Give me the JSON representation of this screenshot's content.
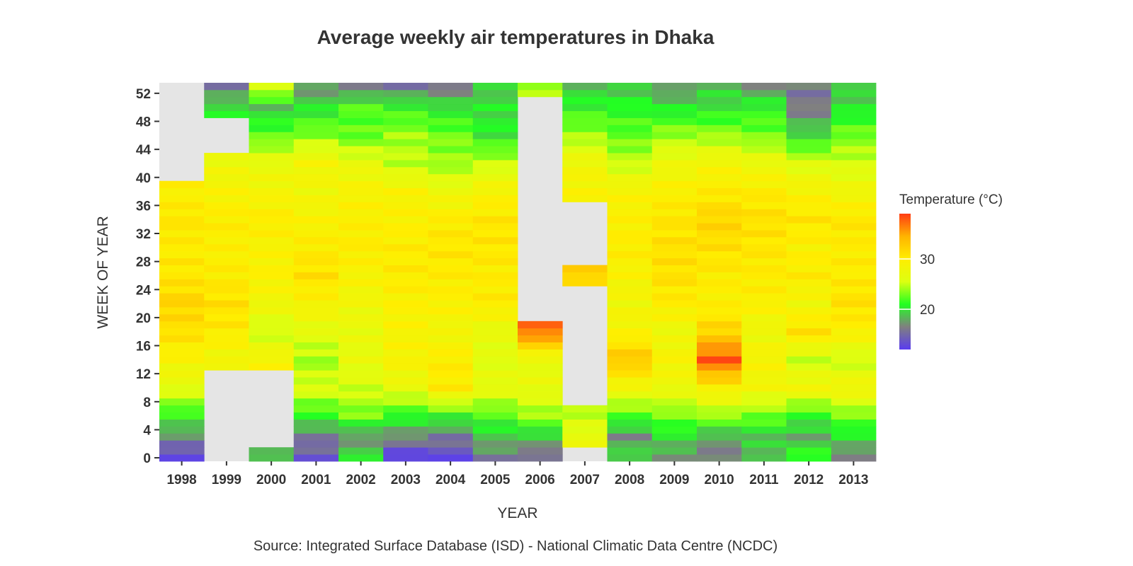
{
  "chart_data": {
    "type": "heatmap",
    "title": "Average weekly air temperatures in Dhaka",
    "xlabel": "YEAR",
    "ylabel": "WEEK OF YEAR",
    "caption": "Source: Integrated Surface Database (ISD) - National Climatic Data Centre (NCDC)",
    "legend": {
      "title": "Temperature (°C)",
      "position": "right",
      "ticks": [
        20,
        30
      ],
      "range": [
        12,
        39
      ],
      "colors": [
        "#5a3cf0",
        "#808080",
        "#22ff22",
        "#ddff11",
        "#ffee00",
        "#ffb400",
        "#ff3c14"
      ]
    },
    "x": [
      "1998",
      "1999",
      "2000",
      "2001",
      "2002",
      "2003",
      "2004",
      "2005",
      "2006",
      "2007",
      "2008",
      "2009",
      "2010",
      "2011",
      "2012",
      "2013"
    ],
    "y_ticks": [
      0,
      4,
      8,
      12,
      16,
      20,
      24,
      28,
      32,
      36,
      40,
      44,
      48,
      52
    ],
    "ylim": [
      -0.5,
      53.5
    ],
    "panel_background": "#e5e5e5",
    "grid": false,
    "weeks_per_anchor": [
      0,
      3,
      6,
      10,
      14,
      18,
      22,
      26,
      30,
      34,
      38,
      42,
      46,
      50,
      53
    ],
    "temperature_anchors_by_year": {
      "1998": [
        12.5,
        17,
        21,
        26.5,
        29,
        31,
        32,
        30.5,
        30,
        30.5,
        29.5,
        null,
        null,
        null,
        null
      ],
      "1999": [
        null,
        null,
        null,
        null,
        28,
        30,
        31,
        30,
        29.5,
        30,
        29,
        27.5,
        null,
        20,
        16
      ],
      "2000": [
        19,
        null,
        null,
        null,
        29,
        25,
        28,
        29.5,
        29,
        30,
        28.5,
        27,
        22.5,
        19,
        26
      ],
      "2001": [
        14,
        16,
        21,
        26,
        24,
        26.5,
        29,
        31,
        30,
        29,
        28,
        28.5,
        23.5,
        20,
        17
      ],
      "2002": [
        20,
        17,
        23,
        25.5,
        27,
        27,
        28,
        29,
        30,
        29.5,
        29,
        27,
        22.5,
        22,
        16
      ],
      "2003": [
        12,
        17,
        21,
        27,
        29,
        29,
        29.5,
        30,
        30,
        29.5,
        29,
        25,
        24,
        21,
        16
      ],
      "2004": [
        13,
        16,
        21,
        30,
        30,
        28,
        29.5,
        30,
        30.5,
        30,
        27.5,
        24,
        23,
        20,
        16
      ],
      "2005": [
        16,
        19,
        22,
        27,
        26,
        27,
        30,
        30,
        30.5,
        30.5,
        29,
        25,
        20.5,
        20,
        19
      ],
      "2006": [
        15,
        19,
        24,
        27,
        27,
        37,
        null,
        null,
        null,
        null,
        null,
        null,
        null,
        null,
        24
      ],
      "2007": [
        null,
        27,
        25,
        null,
        null,
        null,
        null,
        32,
        null,
        null,
        29,
        28,
        24,
        21,
        19
      ],
      "2008": [
        20,
        17,
        22,
        28,
        33,
        29,
        28,
        29,
        30,
        29.5,
        29,
        25,
        22.5,
        21,
        19
      ],
      "2009": [
        17,
        20,
        23,
        27.5,
        29,
        27.5,
        30,
        31,
        31,
        30.5,
        29.5,
        27.5,
        24,
        20,
        17
      ],
      "2010": [
        16,
        18,
        24,
        29.5,
        38,
        32,
        29.5,
        30,
        31,
        32,
        30,
        28.5,
        24,
        20,
        19
      ],
      "2011": [
        19,
        19,
        23,
        28,
        29,
        27.5,
        29.5,
        30,
        30.5,
        31,
        30,
        27.5,
        23,
        21,
        17
      ],
      "2012": [
        22,
        18,
        21,
        28.5,
        25,
        31,
        28,
        30,
        29.5,
        30.5,
        29,
        26,
        20,
        16,
        16
      ],
      "2013": [
        16,
        20,
        23,
        28.5,
        25,
        29.5,
        31,
        30,
        30,
        30.5,
        28,
        25.5,
        23,
        20,
        19
      ]
    }
  }
}
